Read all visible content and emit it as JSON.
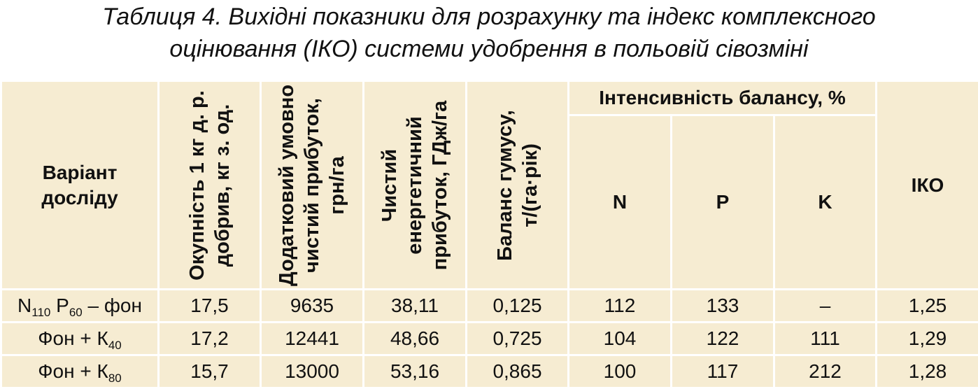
{
  "title": {
    "line1": "Таблиця 4. Вихідні показники для розрахунку та індекс комплексного",
    "line2": "оцінювання (ІКО) системи удобрення в польовій сівозміні"
  },
  "headers": {
    "variant": "Варіант досліду",
    "payback": "Окупність 1 кг д. р. добрив, кг з. од.",
    "profit": "Додатковий умовно чистий прибуток, грн/га",
    "energy": "Чистий енергетичний прибуток, ГДж/га",
    "humus": "Баланс гумусу, т/(га·рік)",
    "intensity": "Інтенсивність балансу, %",
    "n": "N",
    "p": "P",
    "k": "K",
    "iko": "ІКО"
  },
  "rows": [
    {
      "variant": {
        "a": "N",
        "a_sub": "110",
        "b": " P",
        "b_sub": "60",
        "c": " – фон"
      },
      "payback": "17,5",
      "profit": "9635",
      "energy": "38,11",
      "humus": "0,125",
      "n": "112",
      "p": "133",
      "k": "–",
      "iko": "1,25"
    },
    {
      "variant": {
        "a": "Фон + К",
        "a_sub": "40"
      },
      "payback": "17,2",
      "profit": "12441",
      "energy": "48,66",
      "humus": "0,725",
      "n": "104",
      "p": "122",
      "k": "111",
      "iko": "1,29"
    },
    {
      "variant": {
        "a": "Фон + К",
        "a_sub": "80"
      },
      "payback": "15,7",
      "profit": "13000",
      "energy": "53,16",
      "humus": "0,865",
      "n": "100",
      "p": "117",
      "k": "212",
      "iko": "1,28"
    }
  ],
  "colors": {
    "table_background": "#f6ecd2",
    "grid_lines": "#ffffff",
    "text": "#111111"
  }
}
